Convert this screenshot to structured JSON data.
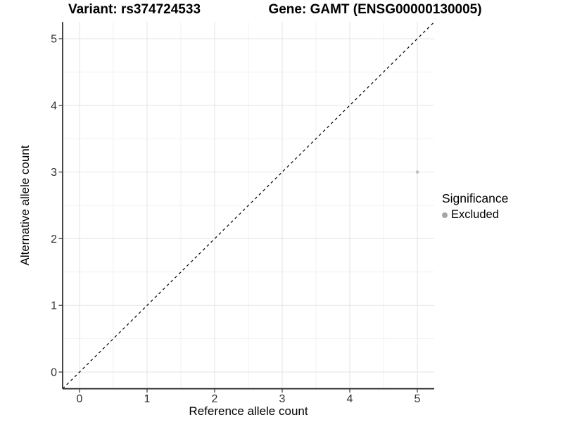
{
  "chart_data": {
    "type": "scatter",
    "title_left": "Variant: rs374724533",
    "title_right": "Gene: GAMT (ENSG00000130005)",
    "xlabel": "Reference allele count",
    "ylabel": "Alternative allele count",
    "xlim": [
      -0.25,
      5.25
    ],
    "ylim": [
      -0.25,
      5.25
    ],
    "xticks": [
      0,
      1,
      2,
      3,
      4,
      5
    ],
    "yticks": [
      0,
      1,
      2,
      3,
      4,
      5
    ],
    "minor_ticks": [
      0.5,
      1.5,
      2.5,
      3.5,
      4.5
    ],
    "grid": true,
    "identity_line": {
      "style": "dashed",
      "color": "#000000"
    },
    "series": [
      {
        "name": "Excluded",
        "point_color": "#c0c0c0",
        "points": [
          {
            "x": 5,
            "y": 3
          }
        ]
      }
    ],
    "legend": {
      "title": "Significance",
      "position": "right",
      "entries": [
        {
          "label": "Excluded",
          "color": "#a6a6a6"
        }
      ]
    },
    "colors": {
      "background": "#ffffff",
      "grid_major": "#e3e3e3",
      "grid_minor": "#f1f1f1",
      "axis_line": "#333333",
      "tick_text": "#303030"
    }
  }
}
